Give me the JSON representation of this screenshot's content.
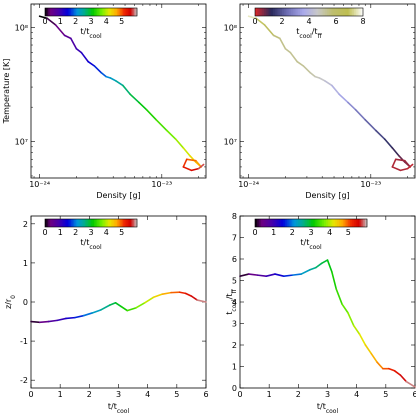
{
  "chart_data": [
    {
      "type": "line",
      "panel": "top-left",
      "xlabel": "Density [g]",
      "ylabel": "Temperature [K]",
      "x_scale": "log",
      "y_scale": "log",
      "xlim": [
        8.5e-25,
        2.3e-23
      ],
      "ylim": [
        4800000.0,
        160000000.0
      ],
      "xticks": [
        1e-24,
        1e-23
      ],
      "xtick_labels": [
        "10⁻²⁴",
        "10⁻²³"
      ],
      "yticks": [
        10000000.0,
        100000000.0
      ],
      "ytick_labels": [
        "10⁷",
        "10⁸"
      ],
      "colorbar": {
        "label": "t/t",
        "label_sub": "cool",
        "cmap": "spectral",
        "range": [
          0,
          6
        ],
        "ticks": [
          0,
          1,
          2,
          3,
          4,
          5
        ]
      },
      "track": [
        [
          1e-24,
          125000000.0
        ],
        [
          1.15e-24,
          120000000.0
        ],
        [
          1.35e-24,
          105000000.0
        ],
        [
          1.6e-24,
          85000000.0
        ],
        [
          1.8e-24,
          80000000.0
        ],
        [
          2e-24,
          65000000.0
        ],
        [
          2.2e-24,
          60000000.0
        ],
        [
          2.5e-24,
          50000000.0
        ],
        [
          2.8e-24,
          46000000.0
        ],
        [
          3.2e-24,
          40000000.0
        ],
        [
          3.5e-24,
          37000000.0
        ],
        [
          3.8e-24,
          36000000.0
        ],
        [
          4.2e-24,
          34000000.0
        ],
        [
          4.8e-24,
          31000000.0
        ],
        [
          5.5e-24,
          26000000.0
        ],
        [
          6.5e-24,
          22000000.0
        ],
        [
          7.5e-24,
          19000000.0
        ],
        [
          9e-24,
          15500000.0
        ],
        [
          1.1e-23,
          12500000.0
        ],
        [
          1.3e-23,
          10500000.0
        ],
        [
          1.5e-23,
          8800000.0
        ],
        [
          1.7e-23,
          7500000.0
        ],
        [
          1.9e-23,
          6600000.0
        ],
        [
          2.1e-23,
          6000000.0
        ],
        [
          1.9e-23,
          6800000.0
        ],
        [
          1.6e-23,
          7000000.0
        ],
        [
          1.5e-23,
          6000000.0
        ],
        [
          1.75e-23,
          5600000.0
        ],
        [
          2e-23,
          5800000.0
        ],
        [
          2.2e-23,
          6300000.0
        ]
      ]
    },
    {
      "type": "line",
      "panel": "top-right",
      "xlabel": "Density [g]",
      "ylabel": "",
      "x_scale": "log",
      "y_scale": "log",
      "xlim": [
        8.5e-25,
        2.3e-23
      ],
      "ylim": [
        4800000.0,
        160000000.0
      ],
      "xticks": [
        1e-24,
        1e-23
      ],
      "xtick_labels": [
        "10⁻²⁴",
        "10⁻²³"
      ],
      "yticks": [
        10000000.0,
        100000000.0
      ],
      "ytick_labels": [
        "10⁷",
        "10⁸"
      ],
      "colorbar": {
        "label": "t",
        "label_sub": "cool",
        "label_mid": "/t",
        "label_sub2": "ff",
        "cmap": "gist_stern",
        "range": [
          0,
          8
        ],
        "ticks": [
          0,
          2,
          4,
          6,
          8
        ]
      },
      "track": [
        [
          1e-24,
          125000000.0
        ],
        [
          1.15e-24,
          120000000.0
        ],
        [
          1.35e-24,
          105000000.0
        ],
        [
          1.6e-24,
          85000000.0
        ],
        [
          1.8e-24,
          80000000.0
        ],
        [
          2e-24,
          65000000.0
        ],
        [
          2.2e-24,
          60000000.0
        ],
        [
          2.5e-24,
          50000000.0
        ],
        [
          2.8e-24,
          46000000.0
        ],
        [
          3.2e-24,
          40000000.0
        ],
        [
          3.5e-24,
          37000000.0
        ],
        [
          3.8e-24,
          36000000.0
        ],
        [
          4.2e-24,
          34000000.0
        ],
        [
          4.8e-24,
          31000000.0
        ],
        [
          5.5e-24,
          26000000.0
        ],
        [
          6.5e-24,
          22000000.0
        ],
        [
          7.5e-24,
          19000000.0
        ],
        [
          9e-24,
          15500000.0
        ],
        [
          1.1e-23,
          12500000.0
        ],
        [
          1.3e-23,
          10500000.0
        ],
        [
          1.5e-23,
          8800000.0
        ],
        [
          1.7e-23,
          7500000.0
        ],
        [
          1.9e-23,
          6600000.0
        ],
        [
          2.1e-23,
          6000000.0
        ],
        [
          1.9e-23,
          6800000.0
        ],
        [
          1.6e-23,
          7000000.0
        ],
        [
          1.5e-23,
          6000000.0
        ],
        [
          1.75e-23,
          5600000.0
        ],
        [
          2e-23,
          5800000.0
        ],
        [
          2.2e-23,
          6300000.0
        ]
      ],
      "ratio": [
        7.6,
        7.0,
        6.2,
        5.6,
        5.4,
        5.3,
        5.3,
        5.3,
        5.2,
        5.0,
        4.8,
        4.6,
        4.3,
        3.9,
        3.5,
        3.0,
        2.6,
        2.2,
        1.8,
        1.4,
        1.1,
        0.8,
        0.6,
        0.5,
        0.4,
        0.3,
        0.3,
        0.3,
        0.2,
        0.2
      ]
    },
    {
      "type": "line",
      "panel": "bottom-left",
      "xlabel": "t/t",
      "xlabel_sub": "cool",
      "ylabel": "z/r",
      "ylabel_sub": "0",
      "xlim": [
        0,
        6
      ],
      "ylim": [
        -2.2,
        2.2
      ],
      "xticks": [
        0,
        1,
        2,
        3,
        4,
        5,
        6
      ],
      "yticks": [
        -2,
        -1,
        0,
        1,
        2
      ],
      "colorbar": {
        "label": "t/t",
        "label_sub": "cool",
        "cmap": "spectral",
        "range": [
          0,
          6
        ],
        "ticks": [
          0,
          1,
          2,
          3,
          4,
          5
        ]
      },
      "x": [
        0,
        0.3,
        0.6,
        0.9,
        1.2,
        1.5,
        1.8,
        2.1,
        2.4,
        2.7,
        2.9,
        3.1,
        3.3,
        3.6,
        3.9,
        4.2,
        4.5,
        4.8,
        5.1,
        5.3,
        5.5,
        5.7,
        6.0
      ],
      "y": [
        -0.5,
        -0.52,
        -0.5,
        -0.47,
        -0.42,
        -0.4,
        -0.35,
        -0.28,
        -0.2,
        -0.08,
        -0.02,
        -0.12,
        -0.22,
        -0.15,
        -0.02,
        0.12,
        0.2,
        0.24,
        0.25,
        0.22,
        0.15,
        0.05,
        0.0
      ]
    },
    {
      "type": "line",
      "panel": "bottom-right",
      "xlabel": "t/t",
      "xlabel_sub": "cool",
      "ylabel": "t",
      "ylabel_sub": "cool",
      "ylabel_mid": "/t",
      "ylabel_sub2": "ff",
      "xlim": [
        0,
        6
      ],
      "ylim": [
        0,
        8
      ],
      "xticks": [
        0,
        1,
        2,
        3,
        4,
        5,
        6
      ],
      "yticks": [
        0,
        1,
        2,
        3,
        4,
        5,
        6,
        7,
        8
      ],
      "colorbar": {
        "label": "t/t",
        "label_sub": "cool",
        "cmap": "spectral",
        "range": [
          0,
          6
        ],
        "ticks": [
          0,
          1,
          2,
          3,
          4,
          5
        ]
      },
      "x": [
        0,
        0.3,
        0.6,
        0.9,
        1.2,
        1.5,
        1.8,
        2.1,
        2.4,
        2.6,
        2.8,
        3.0,
        3.15,
        3.3,
        3.5,
        3.7,
        3.9,
        4.1,
        4.3,
        4.5,
        4.7,
        4.9,
        5.1,
        5.3,
        5.5,
        5.7,
        6.0
      ],
      "y": [
        5.2,
        5.3,
        5.25,
        5.2,
        5.3,
        5.2,
        5.25,
        5.3,
        5.5,
        5.6,
        5.8,
        5.95,
        5.4,
        4.6,
        3.9,
        3.5,
        2.9,
        2.5,
        2.0,
        1.6,
        1.2,
        0.9,
        0.9,
        0.8,
        0.6,
        0.3,
        0.05
      ]
    }
  ]
}
